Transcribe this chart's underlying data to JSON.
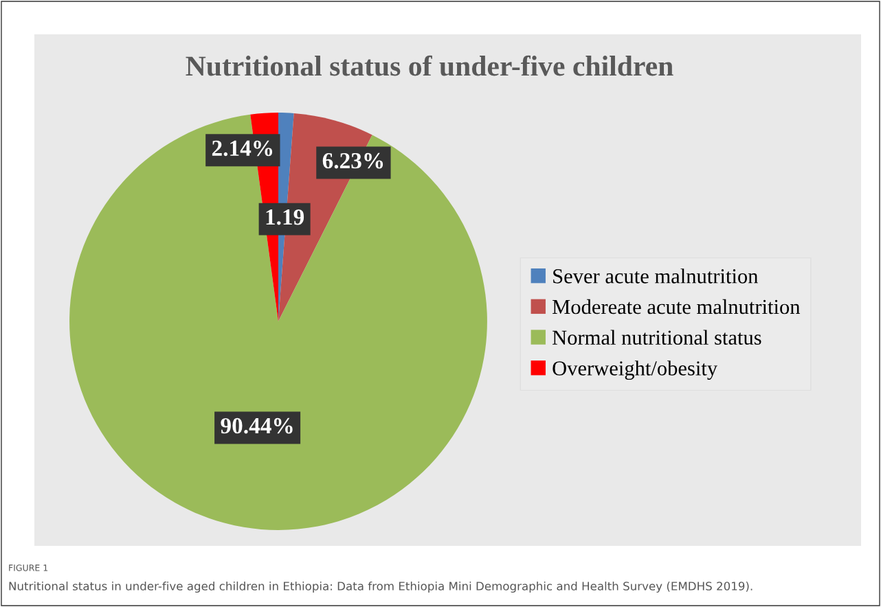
{
  "chart_data": {
    "type": "pie",
    "title": "Nutritional status of under-five children",
    "categories": [
      "Sever acute malnutrition",
      "Modereate acute malnutrition",
      "Normal nutritional status",
      "Overweight/obesity"
    ],
    "values": [
      1.19,
      6.23,
      90.44,
      2.14
    ],
    "colors": [
      "#4f81bd",
      "#c0504d",
      "#9bbb59",
      "#ff0000"
    ],
    "value_labels": [
      "1.19",
      "6.23%",
      "90.44%",
      "2.14%"
    ],
    "legend": "right",
    "annotations": [
      "FIGURE 1",
      "Nutritional status in under-five aged children in Ethiopia: Data from Ethiopia Mini Demographic and Health Survey (EMDHS 2019)."
    ]
  }
}
